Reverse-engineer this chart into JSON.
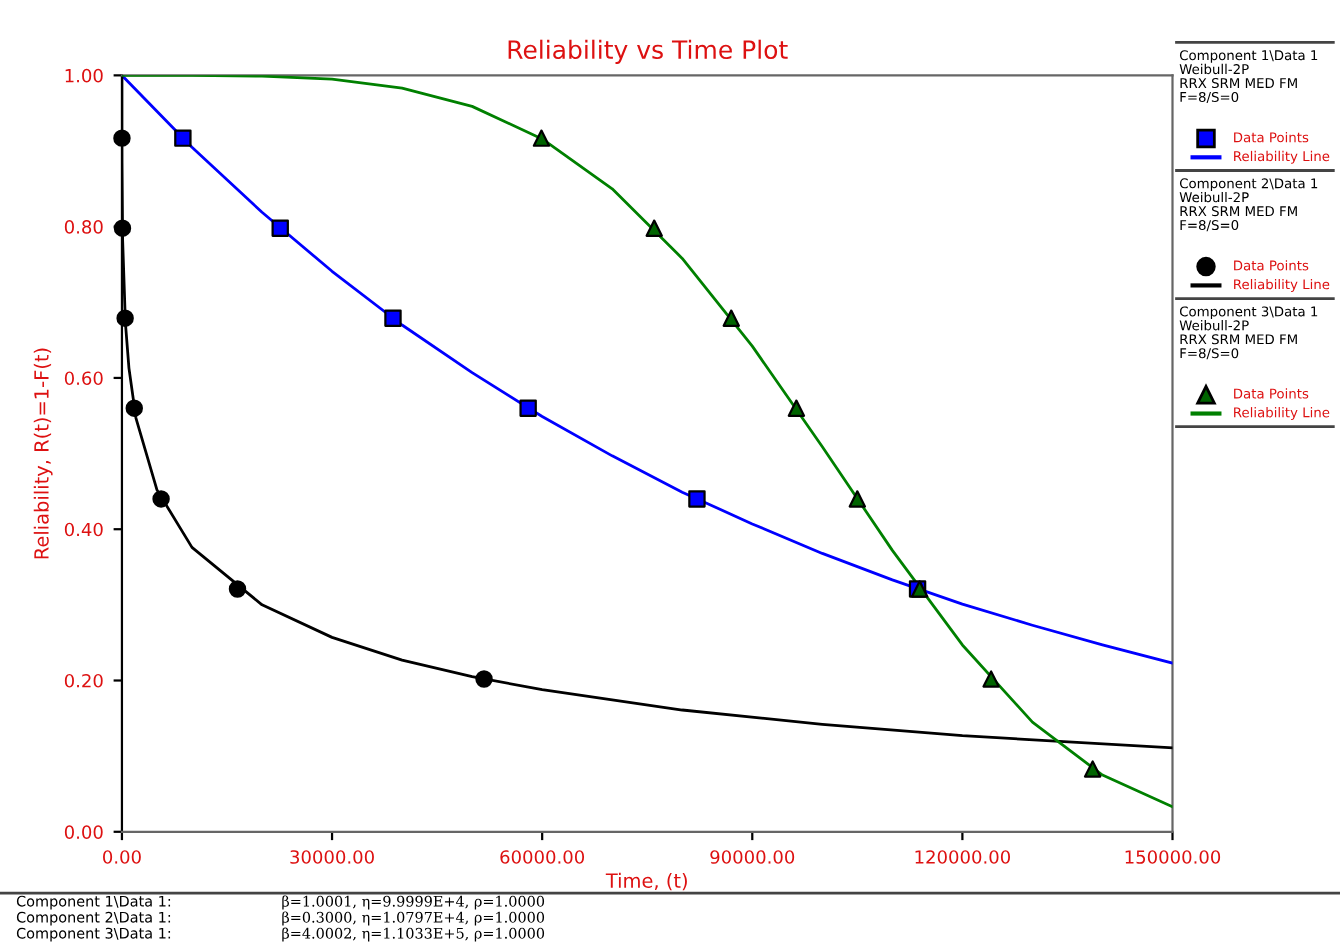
{
  "chart_data": {
    "type": "line",
    "title": "Reliability vs Time Plot",
    "xlabel": "Time, (t)",
    "ylabel": "Reliability, R(t)=1-F(t)",
    "xlim": [
      0,
      150000
    ],
    "ylim": [
      0,
      1
    ],
    "xticks": [
      {
        "value": 0,
        "label": "0.00"
      },
      {
        "value": 30000,
        "label": "30000.00"
      },
      {
        "value": 60000,
        "label": "60000.00"
      },
      {
        "value": 90000,
        "label": "90000.00"
      },
      {
        "value": 120000,
        "label": "120000.00"
      },
      {
        "value": 150000,
        "label": "150000.00"
      }
    ],
    "yticks": [
      {
        "value": 0,
        "label": "0.00"
      },
      {
        "value": 0.2,
        "label": "0.20"
      },
      {
        "value": 0.4,
        "label": "0.40"
      },
      {
        "value": 0.6,
        "label": "0.60"
      },
      {
        "value": 0.8,
        "label": "0.80"
      },
      {
        "value": 1,
        "label": "1.00"
      }
    ],
    "grid": false,
    "legend": "right",
    "series": [
      {
        "name": "Data Points",
        "type": "scatter",
        "marker": "square",
        "color": "#0000ff",
        "x": [
          8700,
          22600,
          38700,
          58000,
          82100,
          113600
        ],
        "values": [
          0.917,
          0.798,
          0.679,
          0.56,
          0.44,
          0.321
        ]
      },
      {
        "name": "Reliability Line",
        "color": "#0000ff",
        "x": [
          0,
          10000,
          20000,
          30000,
          40000,
          50000,
          60000,
          70000,
          80000,
          90000,
          100000,
          110000,
          120000,
          130000,
          140000,
          150000
        ],
        "values": [
          1,
          0.905,
          0.819,
          0.741,
          0.67,
          0.607,
          0.549,
          0.497,
          0.449,
          0.407,
          0.368,
          0.333,
          0.301,
          0.273,
          0.247,
          0.223
        ]
      },
      {
        "name": "Data Points",
        "type": "scatter",
        "marker": "circle",
        "color": "#000000",
        "x": [
          3,
          76,
          456,
          1760,
          5590,
          16500,
          51700
        ],
        "values": [
          0.917,
          0.798,
          0.679,
          0.56,
          0.44,
          0.321,
          0.202
        ]
      },
      {
        "name": "Reliability Line",
        "color": "#000000",
        "x": [
          0,
          0.1,
          1,
          10,
          100,
          500,
          1000,
          2000,
          5000,
          10000,
          20000,
          30000,
          40000,
          50000,
          60000,
          80000,
          100000,
          120000,
          150000
        ],
        "values": [
          1,
          0.97,
          0.94,
          0.884,
          0.782,
          0.672,
          0.613,
          0.547,
          0.452,
          0.376,
          0.3,
          0.257,
          0.227,
          0.205,
          0.188,
          0.161,
          0.142,
          0.127,
          0.111
        ]
      },
      {
        "name": "Data Points",
        "type": "scatter",
        "marker": "triangle",
        "color": "#006400",
        "x": [
          59900,
          76000,
          87000,
          96300,
          105000,
          113900,
          124100,
          138600
        ],
        "values": [
          0.917,
          0.798,
          0.679,
          0.56,
          0.44,
          0.321,
          0.202,
          0.083
        ]
      },
      {
        "name": "Reliability Line",
        "color": "#008000",
        "x": [
          0,
          10000,
          20000,
          30000,
          40000,
          50000,
          60000,
          70000,
          80000,
          90000,
          100000,
          110000,
          120000,
          130000,
          140000,
          150000
        ],
        "values": [
          1,
          1,
          0.999,
          0.995,
          0.983,
          0.959,
          0.916,
          0.85,
          0.758,
          0.642,
          0.509,
          0.372,
          0.247,
          0.145,
          0.075,
          0.033
        ]
      }
    ],
    "annotations": [
      "Component 1\\Data 1\nWeibull-2P\nRRX SRM MED FM\nF=8/S=0",
      "Component 2\\Data 1\nWeibull-2P\nRRX SRM MED FM\nF=8/S=0",
      "Component 3\\Data 1\nWeibull-2P\nRRX SRM MED FM\nF=8/S=0",
      "Component 1\\Data 1:",
      "β=1.0001, η=9.9999E+4, ρ=1.0000",
      "Component 2\\Data 1:",
      "β=0.3000, η=1.0797E+4, ρ=1.0000",
      "Component 3\\Data 1:",
      "β=4.0002, η=1.1033E+5, ρ=1.0000"
    ]
  }
}
